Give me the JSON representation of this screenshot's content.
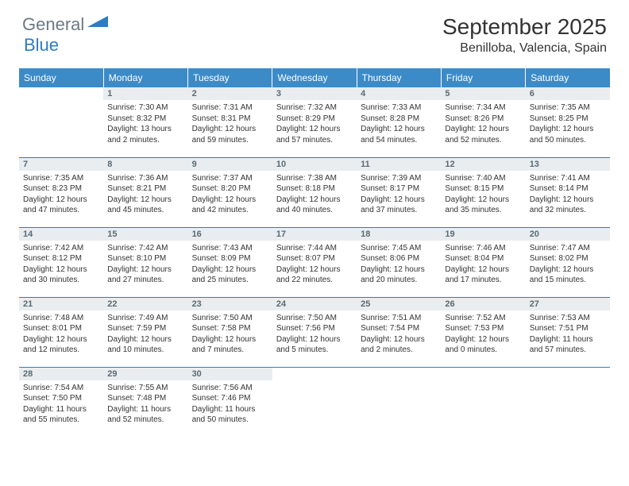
{
  "brand": {
    "part1": "General",
    "part2": "Blue"
  },
  "title": "September 2025",
  "location": "Benilloba, Valencia, Spain",
  "colors": {
    "headerBg": "#3b8bc9",
    "dayNumBg": "#e9edef",
    "border": "#2e7cc2"
  },
  "weekdays": [
    "Sunday",
    "Monday",
    "Tuesday",
    "Wednesday",
    "Thursday",
    "Friday",
    "Saturday"
  ],
  "weeks": [
    [
      null,
      {
        "n": "1",
        "sr": "Sunrise: 7:30 AM",
        "ss": "Sunset: 8:32 PM",
        "dl": "Daylight: 13 hours and 2 minutes."
      },
      {
        "n": "2",
        "sr": "Sunrise: 7:31 AM",
        "ss": "Sunset: 8:31 PM",
        "dl": "Daylight: 12 hours and 59 minutes."
      },
      {
        "n": "3",
        "sr": "Sunrise: 7:32 AM",
        "ss": "Sunset: 8:29 PM",
        "dl": "Daylight: 12 hours and 57 minutes."
      },
      {
        "n": "4",
        "sr": "Sunrise: 7:33 AM",
        "ss": "Sunset: 8:28 PM",
        "dl": "Daylight: 12 hours and 54 minutes."
      },
      {
        "n": "5",
        "sr": "Sunrise: 7:34 AM",
        "ss": "Sunset: 8:26 PM",
        "dl": "Daylight: 12 hours and 52 minutes."
      },
      {
        "n": "6",
        "sr": "Sunrise: 7:35 AM",
        "ss": "Sunset: 8:25 PM",
        "dl": "Daylight: 12 hours and 50 minutes."
      }
    ],
    [
      {
        "n": "7",
        "sr": "Sunrise: 7:35 AM",
        "ss": "Sunset: 8:23 PM",
        "dl": "Daylight: 12 hours and 47 minutes."
      },
      {
        "n": "8",
        "sr": "Sunrise: 7:36 AM",
        "ss": "Sunset: 8:21 PM",
        "dl": "Daylight: 12 hours and 45 minutes."
      },
      {
        "n": "9",
        "sr": "Sunrise: 7:37 AM",
        "ss": "Sunset: 8:20 PM",
        "dl": "Daylight: 12 hours and 42 minutes."
      },
      {
        "n": "10",
        "sr": "Sunrise: 7:38 AM",
        "ss": "Sunset: 8:18 PM",
        "dl": "Daylight: 12 hours and 40 minutes."
      },
      {
        "n": "11",
        "sr": "Sunrise: 7:39 AM",
        "ss": "Sunset: 8:17 PM",
        "dl": "Daylight: 12 hours and 37 minutes."
      },
      {
        "n": "12",
        "sr": "Sunrise: 7:40 AM",
        "ss": "Sunset: 8:15 PM",
        "dl": "Daylight: 12 hours and 35 minutes."
      },
      {
        "n": "13",
        "sr": "Sunrise: 7:41 AM",
        "ss": "Sunset: 8:14 PM",
        "dl": "Daylight: 12 hours and 32 minutes."
      }
    ],
    [
      {
        "n": "14",
        "sr": "Sunrise: 7:42 AM",
        "ss": "Sunset: 8:12 PM",
        "dl": "Daylight: 12 hours and 30 minutes."
      },
      {
        "n": "15",
        "sr": "Sunrise: 7:42 AM",
        "ss": "Sunset: 8:10 PM",
        "dl": "Daylight: 12 hours and 27 minutes."
      },
      {
        "n": "16",
        "sr": "Sunrise: 7:43 AM",
        "ss": "Sunset: 8:09 PM",
        "dl": "Daylight: 12 hours and 25 minutes."
      },
      {
        "n": "17",
        "sr": "Sunrise: 7:44 AM",
        "ss": "Sunset: 8:07 PM",
        "dl": "Daylight: 12 hours and 22 minutes."
      },
      {
        "n": "18",
        "sr": "Sunrise: 7:45 AM",
        "ss": "Sunset: 8:06 PM",
        "dl": "Daylight: 12 hours and 20 minutes."
      },
      {
        "n": "19",
        "sr": "Sunrise: 7:46 AM",
        "ss": "Sunset: 8:04 PM",
        "dl": "Daylight: 12 hours and 17 minutes."
      },
      {
        "n": "20",
        "sr": "Sunrise: 7:47 AM",
        "ss": "Sunset: 8:02 PM",
        "dl": "Daylight: 12 hours and 15 minutes."
      }
    ],
    [
      {
        "n": "21",
        "sr": "Sunrise: 7:48 AM",
        "ss": "Sunset: 8:01 PM",
        "dl": "Daylight: 12 hours and 12 minutes."
      },
      {
        "n": "22",
        "sr": "Sunrise: 7:49 AM",
        "ss": "Sunset: 7:59 PM",
        "dl": "Daylight: 12 hours and 10 minutes."
      },
      {
        "n": "23",
        "sr": "Sunrise: 7:50 AM",
        "ss": "Sunset: 7:58 PM",
        "dl": "Daylight: 12 hours and 7 minutes."
      },
      {
        "n": "24",
        "sr": "Sunrise: 7:50 AM",
        "ss": "Sunset: 7:56 PM",
        "dl": "Daylight: 12 hours and 5 minutes."
      },
      {
        "n": "25",
        "sr": "Sunrise: 7:51 AM",
        "ss": "Sunset: 7:54 PM",
        "dl": "Daylight: 12 hours and 2 minutes."
      },
      {
        "n": "26",
        "sr": "Sunrise: 7:52 AM",
        "ss": "Sunset: 7:53 PM",
        "dl": "Daylight: 12 hours and 0 minutes."
      },
      {
        "n": "27",
        "sr": "Sunrise: 7:53 AM",
        "ss": "Sunset: 7:51 PM",
        "dl": "Daylight: 11 hours and 57 minutes."
      }
    ],
    [
      {
        "n": "28",
        "sr": "Sunrise: 7:54 AM",
        "ss": "Sunset: 7:50 PM",
        "dl": "Daylight: 11 hours and 55 minutes."
      },
      {
        "n": "29",
        "sr": "Sunrise: 7:55 AM",
        "ss": "Sunset: 7:48 PM",
        "dl": "Daylight: 11 hours and 52 minutes."
      },
      {
        "n": "30",
        "sr": "Sunrise: 7:56 AM",
        "ss": "Sunset: 7:46 PM",
        "dl": "Daylight: 11 hours and 50 minutes."
      },
      null,
      null,
      null,
      null
    ]
  ]
}
